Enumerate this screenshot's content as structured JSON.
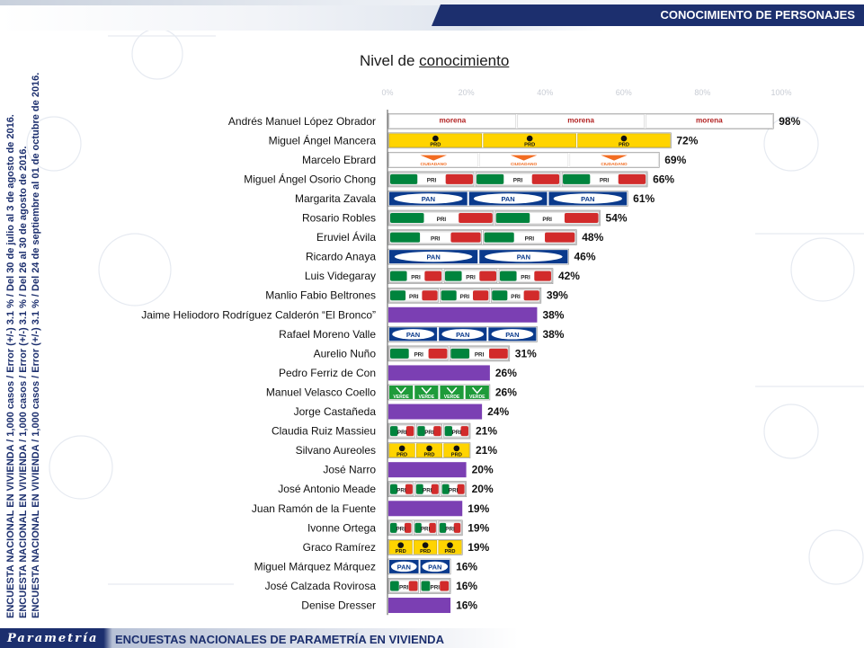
{
  "header": {
    "section_title": "CONOCIMIENTO DE PERSONAJES"
  },
  "footer": {
    "brand": "Parametría",
    "text": "ENCUESTAS NACIONALES  DE PARAMETRÍA EN VIVIENDA"
  },
  "side_notes": [
    "ENCUESTA NACIONAL EN VIVIENDA / 1,000 casos / Error (+/-) 3.1 % / Del 30 de julio al 3 de agosto de 2016.",
    "ENCUESTA NACIONAL EN VIVIENDA / 1,000 casos / Error (+/-) 3.1 % / Del 26 al 30 de agosto de 2016.",
    "ENCUESTA NACIONAL EN VIVIENDA / 1,000 casos / Error (+/-) 3.1 % / Del 24 de septiembre al 01 de octubre de 2016."
  ],
  "colors": {
    "morena": "#b22222",
    "prd": "#ffd400",
    "mc": "#f26c21",
    "pri": "#00843d",
    "pan": "#0a3a8c",
    "verde": "#1e9b3a",
    "independiente": "#7b3fb3",
    "navy": "#1c2f6e"
  },
  "chart_data": {
    "type": "bar",
    "orientation": "horizontal",
    "title_prefix": "Nivel de ",
    "title_underlined": "conocimiento",
    "xlim": [
      0,
      100
    ],
    "x_ticks": [
      "0%",
      "20%",
      "40%",
      "60%",
      "80%",
      "100%"
    ],
    "categories": [
      "Andrés Manuel López Obrador",
      "Miguel Ángel Mancera",
      "Marcelo Ebrard",
      "Miguel Ángel Osorio Chong",
      "Margarita Zavala",
      "Rosario Robles",
      "Eruviel Ávila",
      "Ricardo Anaya",
      "Luis Videgaray",
      "Manlio Fabio Beltrones",
      "Jaime Heliodoro Rodríguez Calderón  “El Bronco”",
      "Rafael Moreno Valle",
      "Aurelio Nuño",
      "Pedro Ferriz de Con",
      "Manuel Velasco Coello",
      "Jorge Castañeda",
      "Claudia Ruiz Massieu",
      "Silvano Aureoles",
      "José Narro",
      "José Antonio Meade",
      "Juan Ramón de la Fuente",
      "Ivonne Ortega ",
      "Graco Ramírez",
      "Miguel Márquez Márquez",
      "José Calzada Rovirosa",
      "Denise Dresser"
    ],
    "values": [
      98,
      72,
      69,
      66,
      61,
      54,
      48,
      46,
      42,
      39,
      38,
      38,
      31,
      26,
      26,
      24,
      21,
      21,
      20,
      20,
      19,
      19,
      19,
      16,
      16,
      16
    ],
    "value_labels": [
      "98%",
      "72%",
      "69%",
      "66%",
      "61%",
      "54%",
      "48%",
      "46%",
      "42%",
      "39%",
      "38%",
      "38%",
      "31%",
      "26%",
      "26%",
      "24%",
      "21%",
      "21%",
      "20%",
      "20%",
      "19%",
      "19%",
      "19%",
      "16%",
      "16%",
      "16%"
    ],
    "party": [
      "morena",
      "prd",
      "mc",
      "pri",
      "pan",
      "pri",
      "pri",
      "pan",
      "pri",
      "pri",
      "independiente",
      "pan",
      "pri",
      "independiente",
      "verde",
      "independiente",
      "pri",
      "prd",
      "independiente",
      "pri",
      "independiente",
      "pri",
      "prd",
      "pan",
      "pri",
      "independiente"
    ],
    "party_marks": {
      "morena": "morena",
      "prd": "PRD",
      "mc": "CIUDADANO",
      "pri": "PRI",
      "pan": "PAN",
      "verde": "VERDE"
    }
  }
}
